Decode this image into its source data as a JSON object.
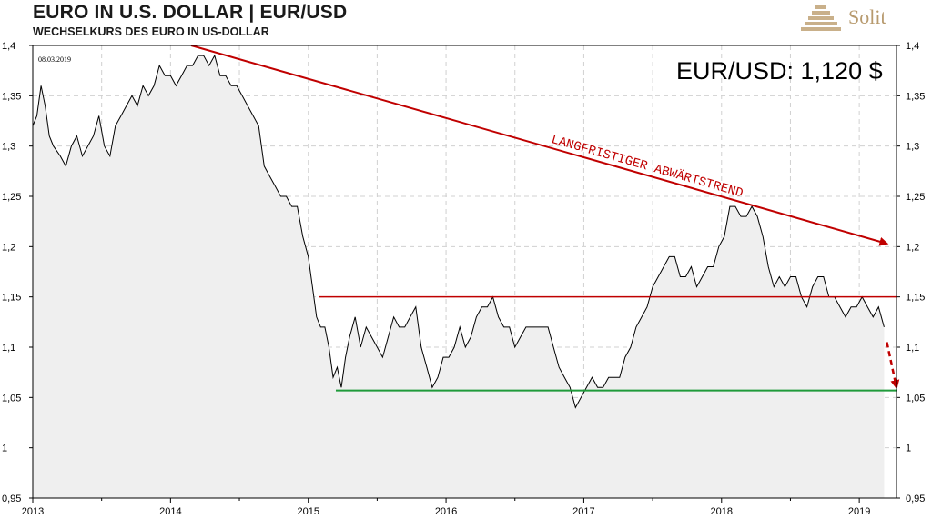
{
  "header": {
    "title": "EURO IN U.S. DOLLAR | EUR/USD",
    "subtitle": "WECHSELKURS  DES  EURO IN US-DOLLAR",
    "brand": "Solit"
  },
  "chart_data": {
    "type": "line",
    "date_label": "08.03.2019",
    "value_label": "EUR/USD: 1,120 $",
    "trend_label": "LANGFRISTIGER ABWÄRTSTREND",
    "ylim": [
      0.95,
      1.4
    ],
    "xlim": [
      2013.0,
      2019.27
    ],
    "y_ticks": [
      "0,95",
      "1",
      "1,05",
      "1,1",
      "1,15",
      "1,2",
      "1,25",
      "1,3",
      "1,35",
      "1,4"
    ],
    "x_ticks": [
      "2013",
      "2014",
      "2015",
      "2016",
      "2017",
      "2018",
      "2019"
    ],
    "grid": true,
    "colors": {
      "line": "#000000",
      "area": "#efefef",
      "trend": "#c00000",
      "resistance": "#c00000",
      "support": "#1f9a3a",
      "grid": "#d0d0d0"
    },
    "trend_line": {
      "from": [
        2014.15,
        1.4
      ],
      "to": [
        2019.2,
        1.203
      ]
    },
    "resistance_line": {
      "from": [
        2015.08,
        1.15
      ],
      "to": [
        2019.27,
        1.15
      ]
    },
    "support_line": {
      "from": [
        2015.2,
        1.057
      ],
      "to": [
        2019.27,
        1.057
      ]
    },
    "projection": {
      "from": [
        2019.2,
        1.105
      ],
      "to": [
        2019.27,
        1.06
      ]
    },
    "series": [
      {
        "points": [
          [
            2013.0,
            1.32
          ],
          [
            2013.03,
            1.33
          ],
          [
            2013.06,
            1.36
          ],
          [
            2013.09,
            1.34
          ],
          [
            2013.12,
            1.31
          ],
          [
            2013.15,
            1.3
          ],
          [
            2013.2,
            1.29
          ],
          [
            2013.24,
            1.28
          ],
          [
            2013.28,
            1.3
          ],
          [
            2013.32,
            1.31
          ],
          [
            2013.36,
            1.29
          ],
          [
            2013.4,
            1.3
          ],
          [
            2013.44,
            1.31
          ],
          [
            2013.48,
            1.33
          ],
          [
            2013.52,
            1.3
          ],
          [
            2013.56,
            1.29
          ],
          [
            2013.6,
            1.32
          ],
          [
            2013.64,
            1.33
          ],
          [
            2013.68,
            1.34
          ],
          [
            2013.72,
            1.35
          ],
          [
            2013.76,
            1.34
          ],
          [
            2013.8,
            1.36
          ],
          [
            2013.84,
            1.35
          ],
          [
            2013.88,
            1.36
          ],
          [
            2013.92,
            1.38
          ],
          [
            2013.96,
            1.37
          ],
          [
            2014.0,
            1.37
          ],
          [
            2014.04,
            1.36
          ],
          [
            2014.08,
            1.37
          ],
          [
            2014.12,
            1.38
          ],
          [
            2014.16,
            1.38
          ],
          [
            2014.2,
            1.39
          ],
          [
            2014.24,
            1.39
          ],
          [
            2014.28,
            1.38
          ],
          [
            2014.32,
            1.39
          ],
          [
            2014.36,
            1.37
          ],
          [
            2014.4,
            1.37
          ],
          [
            2014.44,
            1.36
          ],
          [
            2014.48,
            1.36
          ],
          [
            2014.52,
            1.35
          ],
          [
            2014.56,
            1.34
          ],
          [
            2014.6,
            1.33
          ],
          [
            2014.64,
            1.32
          ],
          [
            2014.68,
            1.28
          ],
          [
            2014.72,
            1.27
          ],
          [
            2014.76,
            1.26
          ],
          [
            2014.8,
            1.25
          ],
          [
            2014.84,
            1.25
          ],
          [
            2014.88,
            1.24
          ],
          [
            2014.92,
            1.24
          ],
          [
            2014.96,
            1.21
          ],
          [
            2015.0,
            1.19
          ],
          [
            2015.03,
            1.16
          ],
          [
            2015.06,
            1.13
          ],
          [
            2015.09,
            1.12
          ],
          [
            2015.12,
            1.12
          ],
          [
            2015.15,
            1.1
          ],
          [
            2015.18,
            1.07
          ],
          [
            2015.21,
            1.08
          ],
          [
            2015.24,
            1.06
          ],
          [
            2015.27,
            1.09
          ],
          [
            2015.3,
            1.11
          ],
          [
            2015.34,
            1.13
          ],
          [
            2015.38,
            1.1
          ],
          [
            2015.42,
            1.12
          ],
          [
            2015.46,
            1.11
          ],
          [
            2015.5,
            1.1
          ],
          [
            2015.54,
            1.09
          ],
          [
            2015.58,
            1.11
          ],
          [
            2015.62,
            1.13
          ],
          [
            2015.66,
            1.12
          ],
          [
            2015.7,
            1.12
          ],
          [
            2015.74,
            1.13
          ],
          [
            2015.78,
            1.14
          ],
          [
            2015.82,
            1.1
          ],
          [
            2015.86,
            1.08
          ],
          [
            2015.9,
            1.06
          ],
          [
            2015.94,
            1.07
          ],
          [
            2015.98,
            1.09
          ],
          [
            2016.02,
            1.09
          ],
          [
            2016.06,
            1.1
          ],
          [
            2016.1,
            1.12
          ],
          [
            2016.14,
            1.1
          ],
          [
            2016.18,
            1.11
          ],
          [
            2016.22,
            1.13
          ],
          [
            2016.26,
            1.14
          ],
          [
            2016.3,
            1.14
          ],
          [
            2016.34,
            1.15
          ],
          [
            2016.38,
            1.13
          ],
          [
            2016.42,
            1.12
          ],
          [
            2016.46,
            1.12
          ],
          [
            2016.5,
            1.1
          ],
          [
            2016.54,
            1.11
          ],
          [
            2016.58,
            1.12
          ],
          [
            2016.62,
            1.12
          ],
          [
            2016.66,
            1.12
          ],
          [
            2016.7,
            1.12
          ],
          [
            2016.74,
            1.12
          ],
          [
            2016.78,
            1.1
          ],
          [
            2016.82,
            1.08
          ],
          [
            2016.86,
            1.07
          ],
          [
            2016.9,
            1.06
          ],
          [
            2016.94,
            1.04
          ],
          [
            2016.98,
            1.05
          ],
          [
            2017.02,
            1.06
          ],
          [
            2017.06,
            1.07
          ],
          [
            2017.1,
            1.06
          ],
          [
            2017.14,
            1.06
          ],
          [
            2017.18,
            1.07
          ],
          [
            2017.22,
            1.07
          ],
          [
            2017.26,
            1.07
          ],
          [
            2017.3,
            1.09
          ],
          [
            2017.34,
            1.1
          ],
          [
            2017.38,
            1.12
          ],
          [
            2017.42,
            1.13
          ],
          [
            2017.46,
            1.14
          ],
          [
            2017.5,
            1.16
          ],
          [
            2017.54,
            1.17
          ],
          [
            2017.58,
            1.18
          ],
          [
            2017.62,
            1.19
          ],
          [
            2017.66,
            1.19
          ],
          [
            2017.7,
            1.17
          ],
          [
            2017.74,
            1.17
          ],
          [
            2017.78,
            1.18
          ],
          [
            2017.82,
            1.16
          ],
          [
            2017.86,
            1.17
          ],
          [
            2017.9,
            1.18
          ],
          [
            2017.94,
            1.18
          ],
          [
            2017.98,
            1.2
          ],
          [
            2018.02,
            1.21
          ],
          [
            2018.06,
            1.24
          ],
          [
            2018.1,
            1.24
          ],
          [
            2018.14,
            1.23
          ],
          [
            2018.18,
            1.23
          ],
          [
            2018.22,
            1.24
          ],
          [
            2018.26,
            1.23
          ],
          [
            2018.3,
            1.21
          ],
          [
            2018.34,
            1.18
          ],
          [
            2018.38,
            1.16
          ],
          [
            2018.42,
            1.17
          ],
          [
            2018.46,
            1.16
          ],
          [
            2018.5,
            1.17
          ],
          [
            2018.54,
            1.17
          ],
          [
            2018.58,
            1.15
          ],
          [
            2018.62,
            1.14
          ],
          [
            2018.66,
            1.16
          ],
          [
            2018.7,
            1.17
          ],
          [
            2018.74,
            1.17
          ],
          [
            2018.78,
            1.15
          ],
          [
            2018.82,
            1.15
          ],
          [
            2018.86,
            1.14
          ],
          [
            2018.9,
            1.13
          ],
          [
            2018.94,
            1.14
          ],
          [
            2018.98,
            1.14
          ],
          [
            2019.02,
            1.15
          ],
          [
            2019.06,
            1.14
          ],
          [
            2019.1,
            1.13
          ],
          [
            2019.14,
            1.14
          ],
          [
            2019.18,
            1.12
          ]
        ]
      }
    ]
  }
}
